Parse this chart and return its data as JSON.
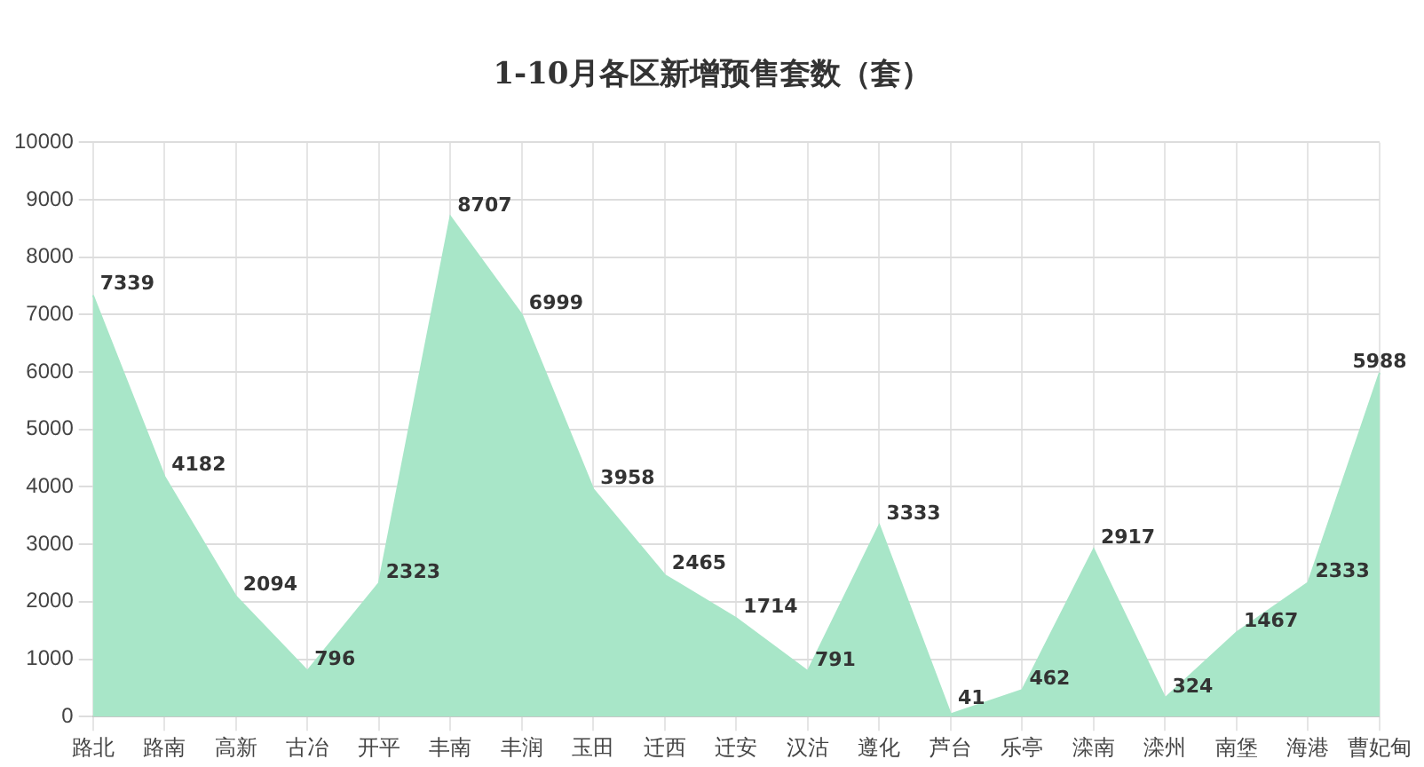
{
  "chart_data": {
    "type": "area",
    "title": "1-10月各区新增预售套数（套）",
    "categories": [
      "路北",
      "路南",
      "高新",
      "古冶",
      "开平",
      "丰南",
      "丰润",
      "玉田",
      "迁西",
      "迁安",
      "汉沽",
      "遵化",
      "芦台",
      "乐亭",
      "滦南",
      "滦州",
      "南堡",
      "海港",
      "曹妃甸"
    ],
    "values": [
      7339,
      4182,
      2094,
      796,
      2323,
      8707,
      6999,
      3958,
      2465,
      1714,
      791,
      3333,
      41,
      462,
      2917,
      324,
      1467,
      2333,
      5988
    ],
    "color": "#a8e6c8",
    "ylim": [
      0,
      10000
    ],
    "yticks": [
      0,
      1000,
      2000,
      3000,
      4000,
      5000,
      6000,
      7000,
      8000,
      9000,
      10000
    ],
    "grid": true,
    "data_labels": true,
    "legend": false
  }
}
